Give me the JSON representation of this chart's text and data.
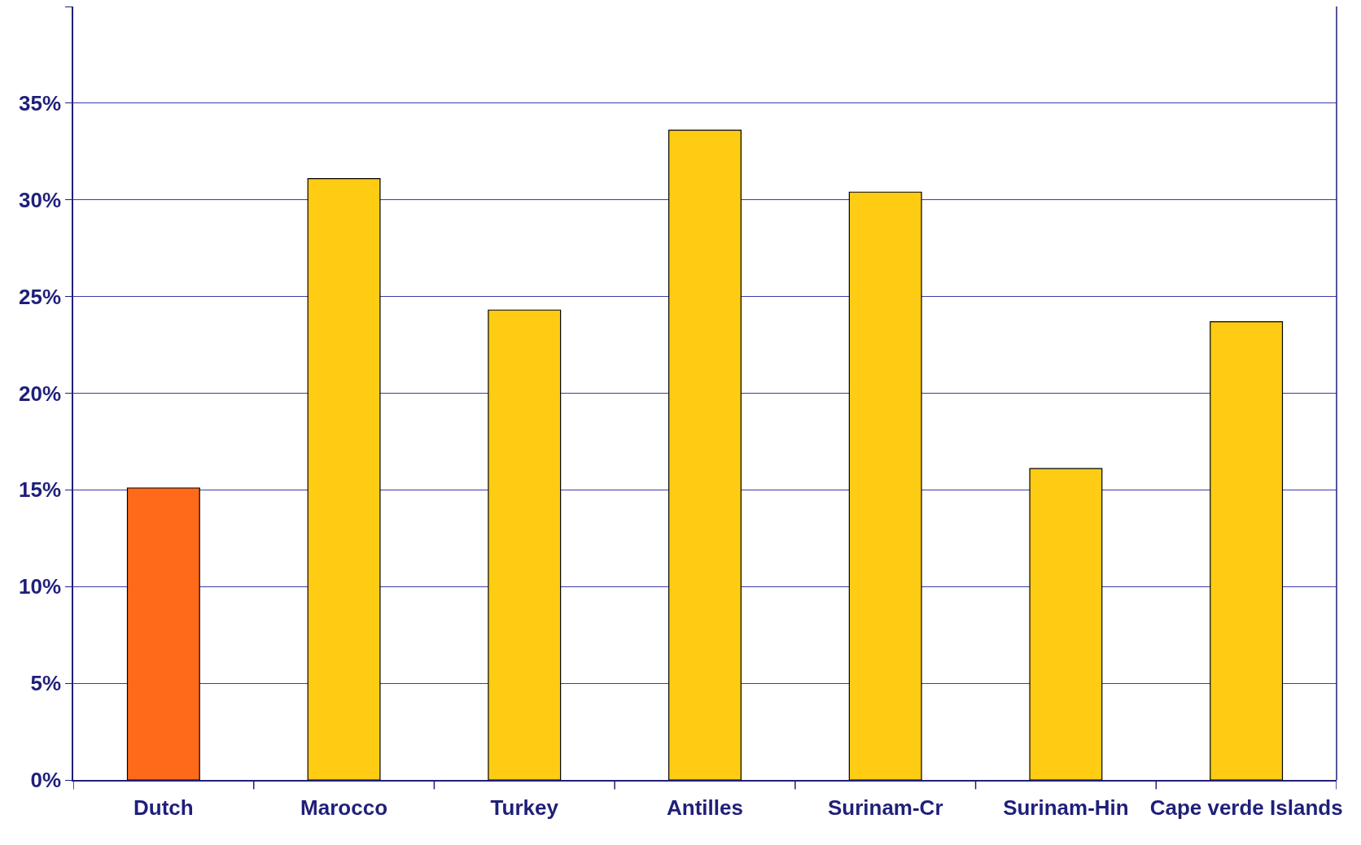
{
  "chart_data": {
    "type": "bar",
    "categories": [
      "Dutch",
      "Marocco",
      "Turkey",
      "Antilles",
      "Surinam-Cr",
      "Surinam-Hin",
      "Cape verde Islands"
    ],
    "values": [
      15.1,
      31.1,
      24.3,
      33.6,
      30.4,
      16.1,
      23.7
    ],
    "colors": [
      "#ff6a1a",
      "#ffcc14",
      "#ffcc14",
      "#ffcc14",
      "#ffcc14",
      "#ffcc14",
      "#ffcc14"
    ],
    "ylim": [
      0,
      40
    ],
    "yticks": [
      {
        "value": 0,
        "label": "0%"
      },
      {
        "value": 5,
        "label": "5%"
      },
      {
        "value": 10,
        "label": "10%"
      },
      {
        "value": 15,
        "label": "15%"
      },
      {
        "value": 20,
        "label": "20%"
      },
      {
        "value": 25,
        "label": "25%"
      },
      {
        "value": 30,
        "label": "30%"
      },
      {
        "value": 35,
        "label": "35%"
      },
      {
        "value": 40,
        "label": null
      }
    ],
    "grid": "y"
  }
}
